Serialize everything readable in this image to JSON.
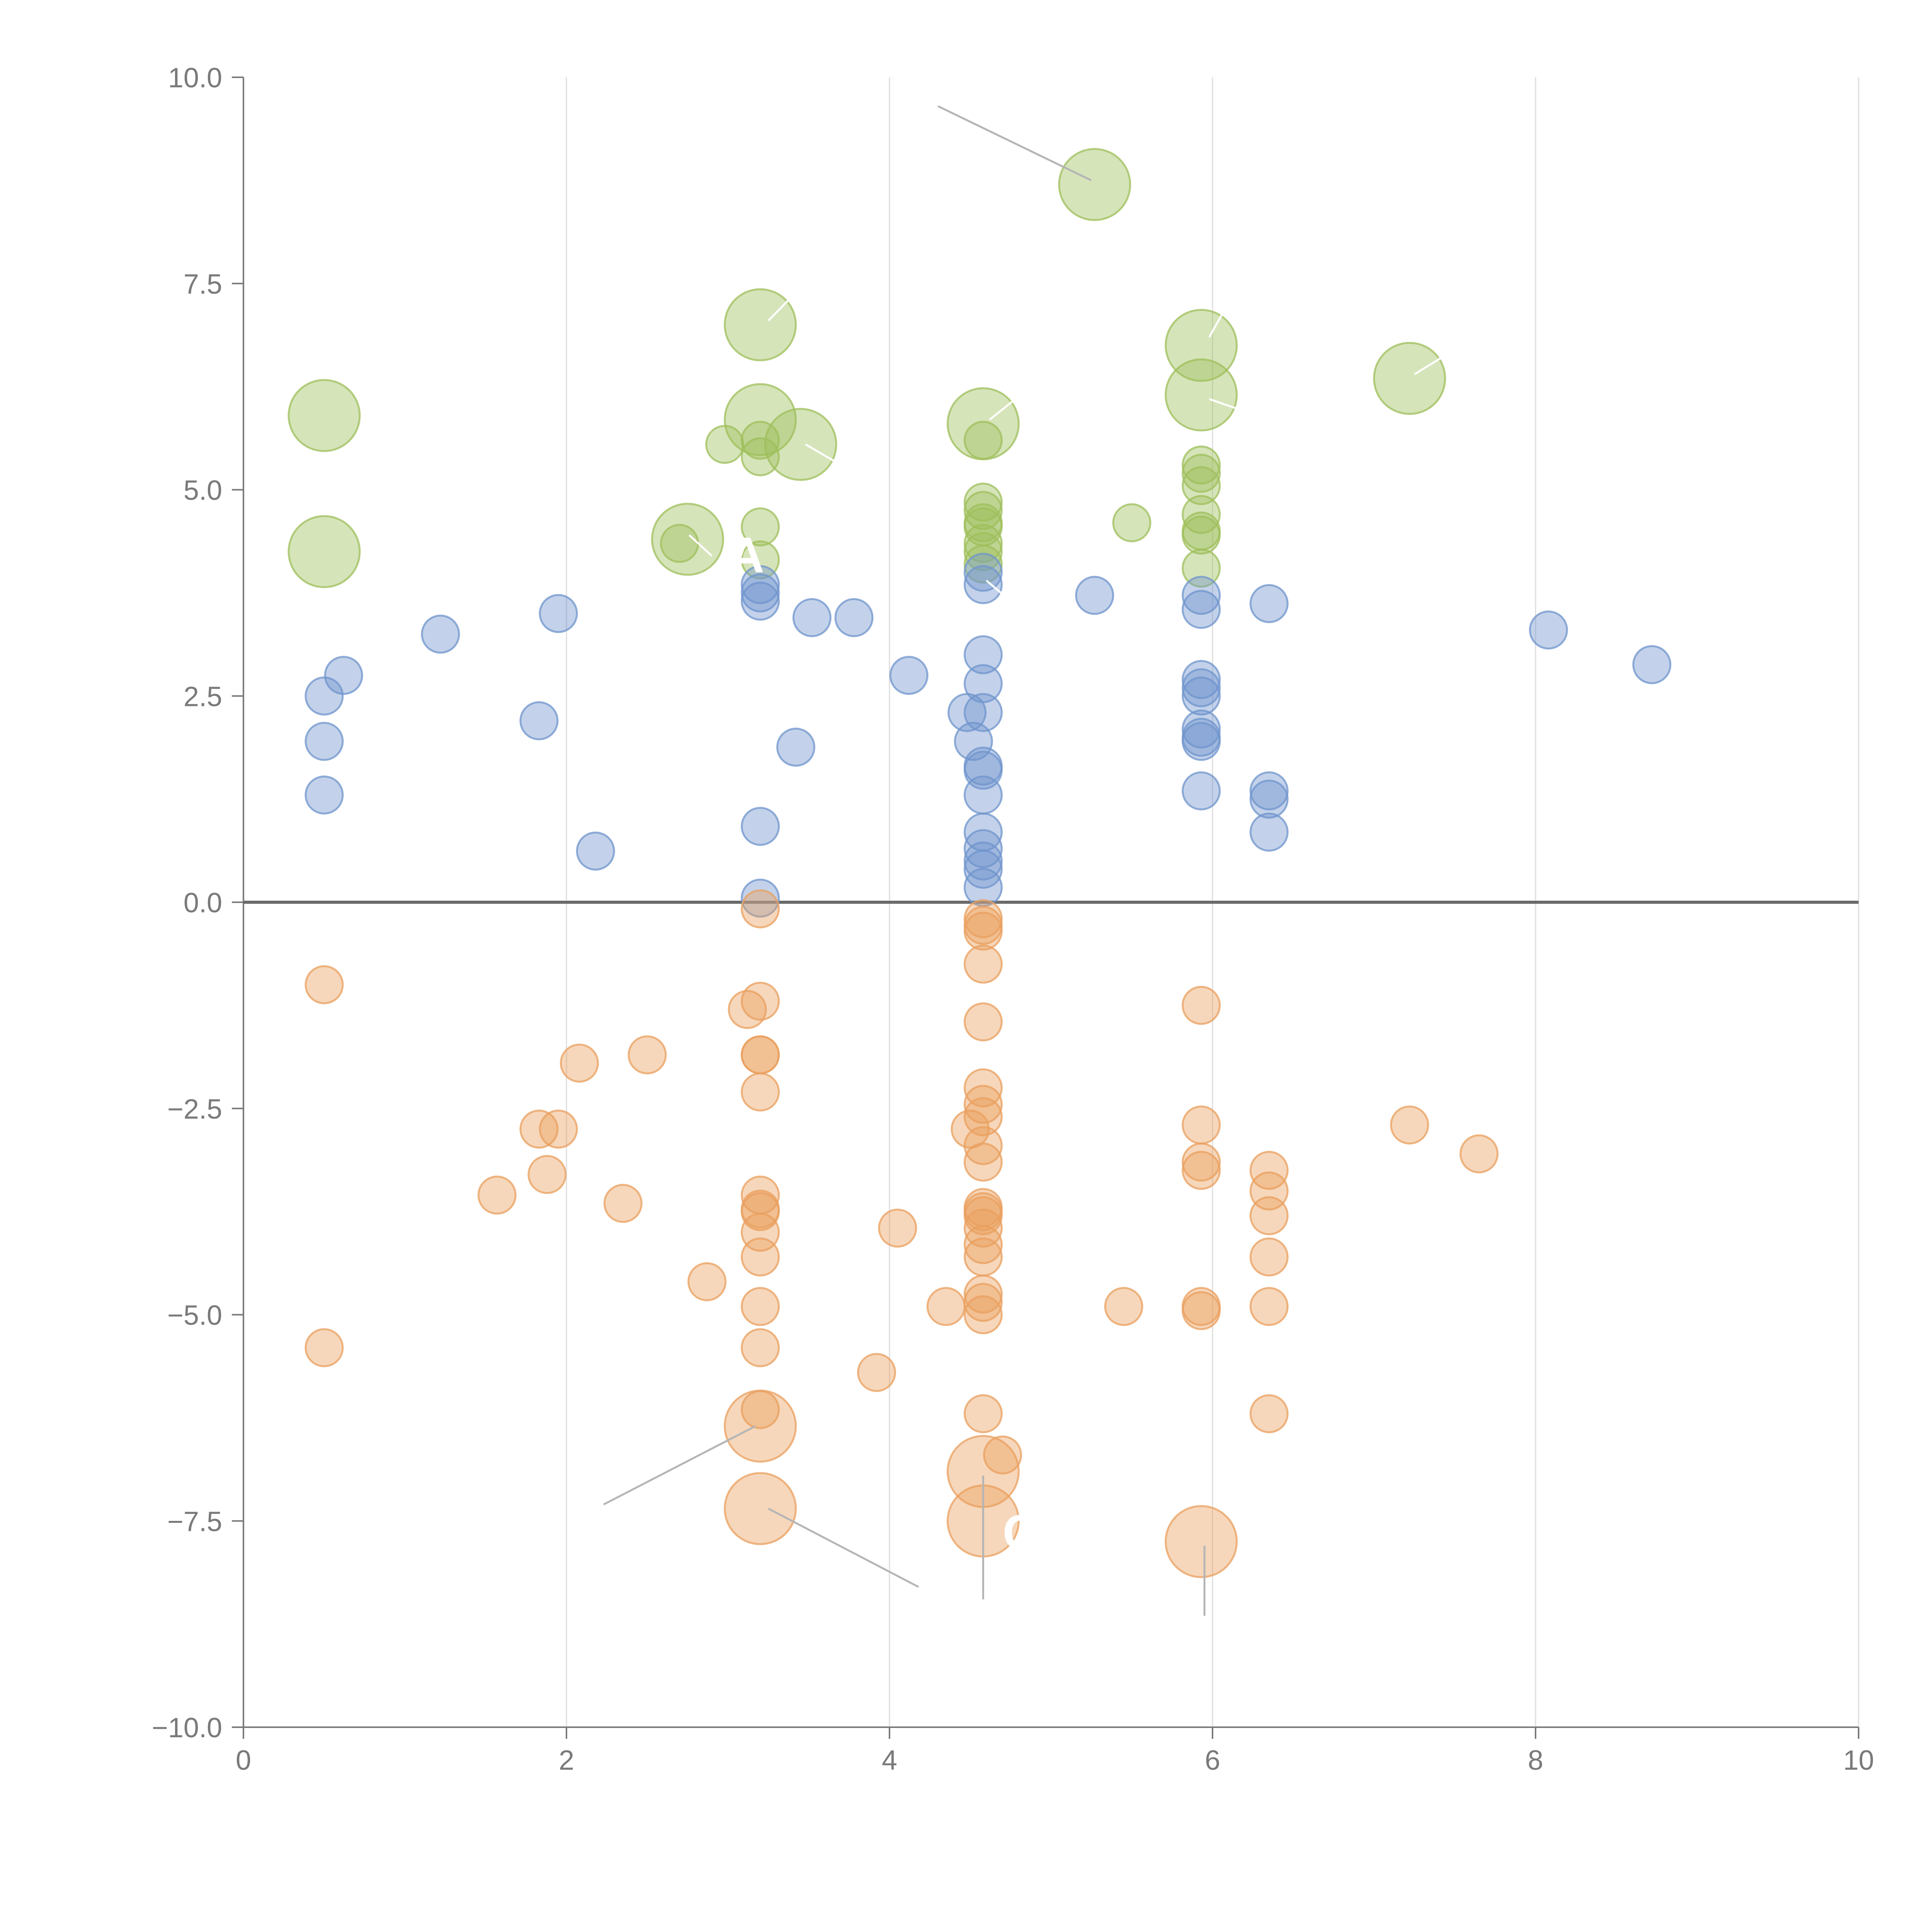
{
  "chart_data": {
    "type": "scatter",
    "title": "",
    "xlabel": "",
    "ylabel": "",
    "xlim": [
      0,
      10
    ],
    "ylim": [
      -10,
      10
    ],
    "grid": {
      "vertical": true,
      "horizontal": false
    },
    "x_ticks": [
      0,
      2,
      4,
      6,
      8,
      10
    ],
    "x_tick_labels": [
      "0",
      "2",
      "4",
      "6",
      "8",
      "10"
    ],
    "y_ticks": [
      10,
      7.5,
      5,
      2.5,
      0,
      -2.5,
      -5,
      -7.5,
      -10
    ],
    "y_tick_labels": [
      "10.0",
      "7.5",
      "5.0",
      "2.5",
      "0.0",
      "−2.5",
      "−5.0",
      "−7.5",
      "−10.0"
    ],
    "zero_line": 0,
    "colors": {
      "green": "#9dbf5a",
      "blue": "#6f94cc",
      "orange": "#e99f5e",
      "axis": "#7a7a7a",
      "grid": "#dddddd",
      "zero": "#6a6a6a",
      "connector": "#b5b5b5"
    },
    "series": [
      {
        "name": "green",
        "color": "#9dbf5a",
        "points": [
          {
            "x": 0.5,
            "y": 5.9,
            "size": "l"
          },
          {
            "x": 0.5,
            "y": 4.25,
            "size": "l"
          },
          {
            "x": 2.75,
            "y": 4.4,
            "size": "l"
          },
          {
            "x": 2.7,
            "y": 4.35,
            "size": "s"
          },
          {
            "x": 2.98,
            "y": 5.55,
            "size": "s"
          },
          {
            "x": 3.2,
            "y": 7.0,
            "size": "l"
          },
          {
            "x": 3.2,
            "y": 5.85,
            "size": "l"
          },
          {
            "x": 3.45,
            "y": 5.55,
            "size": "l"
          },
          {
            "x": 3.2,
            "y": 5.6,
            "size": "s"
          },
          {
            "x": 3.2,
            "y": 5.4,
            "size": "s"
          },
          {
            "x": 3.2,
            "y": 4.55,
            "size": "s"
          },
          {
            "x": 3.2,
            "y": 4.15,
            "size": "s"
          },
          {
            "x": 4.58,
            "y": 5.8,
            "size": "l"
          },
          {
            "x": 4.58,
            "y": 5.6,
            "size": "s"
          },
          {
            "x": 4.58,
            "y": 4.85,
            "size": "s"
          },
          {
            "x": 4.58,
            "y": 4.75,
            "size": "s"
          },
          {
            "x": 4.58,
            "y": 4.6,
            "size": "s"
          },
          {
            "x": 4.58,
            "y": 4.55,
            "size": "s"
          },
          {
            "x": 4.58,
            "y": 4.35,
            "size": "s"
          },
          {
            "x": 4.58,
            "y": 4.25,
            "size": "s"
          },
          {
            "x": 4.58,
            "y": 4.1,
            "size": "s"
          },
          {
            "x": 5.27,
            "y": 8.7,
            "size": "l"
          },
          {
            "x": 5.5,
            "y": 4.6,
            "size": "s"
          },
          {
            "x": 5.93,
            "y": 6.75,
            "size": "l"
          },
          {
            "x": 5.93,
            "y": 6.15,
            "size": "l"
          },
          {
            "x": 5.93,
            "y": 5.3,
            "size": "s"
          },
          {
            "x": 5.93,
            "y": 5.2,
            "size": "s"
          },
          {
            "x": 5.93,
            "y": 5.05,
            "size": "s"
          },
          {
            "x": 5.93,
            "y": 4.7,
            "size": "s"
          },
          {
            "x": 5.93,
            "y": 4.5,
            "size": "s"
          },
          {
            "x": 5.93,
            "y": 4.45,
            "size": "s"
          },
          {
            "x": 5.93,
            "y": 4.05,
            "size": "s"
          },
          {
            "x": 7.22,
            "y": 6.35,
            "size": "l"
          }
        ]
      },
      {
        "name": "blue",
        "color": "#6f94cc",
        "points": [
          {
            "x": 0.5,
            "y": 2.5,
            "size": "s"
          },
          {
            "x": 0.5,
            "y": 1.95,
            "size": "s"
          },
          {
            "x": 0.5,
            "y": 1.3,
            "size": "s"
          },
          {
            "x": 0.62,
            "y": 2.75,
            "size": "s"
          },
          {
            "x": 1.22,
            "y": 3.25,
            "size": "s"
          },
          {
            "x": 1.83,
            "y": 2.2,
            "size": "s"
          },
          {
            "x": 1.95,
            "y": 3.5,
            "size": "s"
          },
          {
            "x": 2.18,
            "y": 0.62,
            "size": "s"
          },
          {
            "x": 3.2,
            "y": 3.85,
            "size": "s"
          },
          {
            "x": 3.2,
            "y": 3.75,
            "size": "s"
          },
          {
            "x": 3.2,
            "y": 3.65,
            "size": "s"
          },
          {
            "x": 3.2,
            "y": 0.92,
            "size": "s"
          },
          {
            "x": 3.2,
            "y": 0.05,
            "size": "s"
          },
          {
            "x": 3.42,
            "y": 1.88,
            "size": "s"
          },
          {
            "x": 3.52,
            "y": 3.45,
            "size": "s"
          },
          {
            "x": 3.78,
            "y": 3.45,
            "size": "s"
          },
          {
            "x": 4.12,
            "y": 2.75,
            "size": "s"
          },
          {
            "x": 4.48,
            "y": 2.3,
            "size": "s"
          },
          {
            "x": 4.52,
            "y": 1.95,
            "size": "s"
          },
          {
            "x": 4.58,
            "y": 4.0,
            "size": "s"
          },
          {
            "x": 4.58,
            "y": 3.85,
            "size": "s"
          },
          {
            "x": 4.58,
            "y": 3.0,
            "size": "s"
          },
          {
            "x": 4.58,
            "y": 2.65,
            "size": "s"
          },
          {
            "x": 4.58,
            "y": 2.3,
            "size": "s"
          },
          {
            "x": 4.58,
            "y": 1.65,
            "size": "s"
          },
          {
            "x": 4.58,
            "y": 1.6,
            "size": "s"
          },
          {
            "x": 4.58,
            "y": 1.3,
            "size": "s"
          },
          {
            "x": 4.58,
            "y": 0.85,
            "size": "s"
          },
          {
            "x": 4.58,
            "y": 0.65,
            "size": "s"
          },
          {
            "x": 4.58,
            "y": 0.5,
            "size": "s"
          },
          {
            "x": 4.58,
            "y": 0.4,
            "size": "s"
          },
          {
            "x": 4.58,
            "y": 0.18,
            "size": "s"
          },
          {
            "x": 5.27,
            "y": 3.72,
            "size": "s"
          },
          {
            "x": 5.93,
            "y": 3.72,
            "size": "s"
          },
          {
            "x": 5.93,
            "y": 3.55,
            "size": "s"
          },
          {
            "x": 5.93,
            "y": 2.7,
            "size": "s"
          },
          {
            "x": 5.93,
            "y": 2.6,
            "size": "s"
          },
          {
            "x": 5.93,
            "y": 2.5,
            "size": "s"
          },
          {
            "x": 5.93,
            "y": 2.1,
            "size": "s"
          },
          {
            "x": 5.93,
            "y": 2.0,
            "size": "s"
          },
          {
            "x": 5.93,
            "y": 1.95,
            "size": "s"
          },
          {
            "x": 5.93,
            "y": 1.35,
            "size": "s"
          },
          {
            "x": 6.35,
            "y": 3.62,
            "size": "s"
          },
          {
            "x": 6.35,
            "y": 1.35,
            "size": "s"
          },
          {
            "x": 6.35,
            "y": 1.25,
            "size": "s"
          },
          {
            "x": 6.35,
            "y": 0.85,
            "size": "s"
          },
          {
            "x": 8.08,
            "y": 3.3,
            "size": "s"
          },
          {
            "x": 8.72,
            "y": 2.88,
            "size": "s"
          }
        ]
      },
      {
        "name": "orange",
        "color": "#e99f5e",
        "points": [
          {
            "x": 0.5,
            "y": -1.0,
            "size": "s"
          },
          {
            "x": 0.5,
            "y": -5.4,
            "size": "s"
          },
          {
            "x": 1.57,
            "y": -3.55,
            "size": "s"
          },
          {
            "x": 1.83,
            "y": -2.75,
            "size": "s"
          },
          {
            "x": 1.88,
            "y": -3.3,
            "size": "s"
          },
          {
            "x": 1.95,
            "y": -2.75,
            "size": "s"
          },
          {
            "x": 2.08,
            "y": -1.95,
            "size": "s"
          },
          {
            "x": 2.35,
            "y": -3.65,
            "size": "s"
          },
          {
            "x": 2.5,
            "y": -1.85,
            "size": "s"
          },
          {
            "x": 2.87,
            "y": -4.6,
            "size": "s"
          },
          {
            "x": 3.12,
            "y": -1.3,
            "size": "s"
          },
          {
            "x": 3.2,
            "y": -0.08,
            "size": "s"
          },
          {
            "x": 3.2,
            "y": -1.2,
            "size": "s"
          },
          {
            "x": 3.2,
            "y": -1.85,
            "size": "s"
          },
          {
            "x": 3.2,
            "y": -1.85,
            "size": "s"
          },
          {
            "x": 3.2,
            "y": -2.3,
            "size": "s"
          },
          {
            "x": 3.2,
            "y": -3.55,
            "size": "s"
          },
          {
            "x": 3.2,
            "y": -3.72,
            "size": "s"
          },
          {
            "x": 3.2,
            "y": -3.75,
            "size": "s"
          },
          {
            "x": 3.2,
            "y": -4.0,
            "size": "s"
          },
          {
            "x": 3.2,
            "y": -4.3,
            "size": "s"
          },
          {
            "x": 3.2,
            "y": -4.9,
            "size": "s"
          },
          {
            "x": 3.2,
            "y": -5.4,
            "size": "s"
          },
          {
            "x": 3.2,
            "y": -6.15,
            "size": "s"
          },
          {
            "x": 3.2,
            "y": -6.35,
            "size": "l"
          },
          {
            "x": 3.2,
            "y": -7.35,
            "size": "l"
          },
          {
            "x": 3.92,
            "y": -5.7,
            "size": "s"
          },
          {
            "x": 4.05,
            "y": -3.95,
            "size": "s"
          },
          {
            "x": 4.35,
            "y": -4.9,
            "size": "s"
          },
          {
            "x": 4.5,
            "y": -2.75,
            "size": "s"
          },
          {
            "x": 4.58,
            "y": -0.2,
            "size": "s"
          },
          {
            "x": 4.58,
            "y": -0.28,
            "size": "s"
          },
          {
            "x": 4.58,
            "y": -0.35,
            "size": "s"
          },
          {
            "x": 4.58,
            "y": -0.75,
            "size": "s"
          },
          {
            "x": 4.58,
            "y": -1.45,
            "size": "s"
          },
          {
            "x": 4.58,
            "y": -2.25,
            "size": "s"
          },
          {
            "x": 4.58,
            "y": -2.45,
            "size": "s"
          },
          {
            "x": 4.58,
            "y": -2.6,
            "size": "s"
          },
          {
            "x": 4.58,
            "y": -2.95,
            "size": "s"
          },
          {
            "x": 4.58,
            "y": -3.15,
            "size": "s"
          },
          {
            "x": 4.58,
            "y": -3.7,
            "size": "s"
          },
          {
            "x": 4.58,
            "y": -3.75,
            "size": "s"
          },
          {
            "x": 4.58,
            "y": -3.8,
            "size": "s"
          },
          {
            "x": 4.58,
            "y": -3.95,
            "size": "s"
          },
          {
            "x": 4.58,
            "y": -4.15,
            "size": "s"
          },
          {
            "x": 4.58,
            "y": -4.3,
            "size": "s"
          },
          {
            "x": 4.58,
            "y": -4.75,
            "size": "s"
          },
          {
            "x": 4.58,
            "y": -4.85,
            "size": "s"
          },
          {
            "x": 4.58,
            "y": -5.0,
            "size": "s"
          },
          {
            "x": 4.58,
            "y": -6.2,
            "size": "s"
          },
          {
            "x": 4.58,
            "y": -6.9,
            "size": "l"
          },
          {
            "x": 4.58,
            "y": -7.5,
            "size": "l"
          },
          {
            "x": 4.7,
            "y": -6.7,
            "size": "s"
          },
          {
            "x": 5.45,
            "y": -4.9,
            "size": "s"
          },
          {
            "x": 5.93,
            "y": -1.25,
            "size": "s"
          },
          {
            "x": 5.93,
            "y": -2.7,
            "size": "s"
          },
          {
            "x": 5.93,
            "y": -3.15,
            "size": "s"
          },
          {
            "x": 5.93,
            "y": -3.25,
            "size": "s"
          },
          {
            "x": 5.93,
            "y": -4.9,
            "size": "s"
          },
          {
            "x": 5.93,
            "y": -4.95,
            "size": "s"
          },
          {
            "x": 5.93,
            "y": -7.75,
            "size": "l"
          },
          {
            "x": 6.35,
            "y": -3.25,
            "size": "s"
          },
          {
            "x": 6.35,
            "y": -3.5,
            "size": "s"
          },
          {
            "x": 6.35,
            "y": -3.8,
            "size": "s"
          },
          {
            "x": 6.35,
            "y": -4.3,
            "size": "s"
          },
          {
            "x": 6.35,
            "y": -4.9,
            "size": "s"
          },
          {
            "x": 6.35,
            "y": -6.2,
            "size": "s"
          },
          {
            "x": 7.22,
            "y": -2.7,
            "size": "s"
          },
          {
            "x": 7.65,
            "y": -3.05,
            "size": "s"
          }
        ]
      }
    ],
    "annotation_connectors": [
      {
        "color": "#b5b5b5",
        "from": [
          4.3,
          9.65
        ],
        "to": [
          5.25,
          8.75
        ]
      },
      {
        "color": "#ffffff",
        "from": [
          3.25,
          7.05
        ],
        "to": [
          3.4,
          7.35
        ]
      },
      {
        "color": "#ffffff",
        "from": [
          5.98,
          6.85
        ],
        "to": [
          6.08,
          7.2
        ]
      },
      {
        "color": "#ffffff",
        "from": [
          5.98,
          6.1
        ],
        "to": [
          6.2,
          5.95
        ]
      },
      {
        "color": "#ffffff",
        "from": [
          7.25,
          6.4
        ],
        "to": [
          7.5,
          6.7
        ]
      },
      {
        "color": "#ffffff",
        "from": [
          4.62,
          5.85
        ],
        "to": [
          4.78,
          6.1
        ]
      },
      {
        "color": "#ffffff",
        "from": [
          3.48,
          5.55
        ],
        "to": [
          3.7,
          5.3
        ]
      },
      {
        "color": "#ffffff",
        "from": [
          2.76,
          4.45
        ],
        "to": [
          2.9,
          4.2
        ]
      },
      {
        "color": "#ffffff",
        "from": [
          4.6,
          3.9
        ],
        "to": [
          4.75,
          3.65
        ]
      },
      {
        "color": "#b5b5b5",
        "from": [
          3.17,
          -6.35
        ],
        "to": [
          2.23,
          -7.3
        ]
      },
      {
        "color": "#b5b5b5",
        "from": [
          3.25,
          -7.35
        ],
        "to": [
          4.18,
          -8.3
        ]
      },
      {
        "color": "#b5b5b5",
        "from": [
          4.58,
          -6.95
        ],
        "to": [
          4.58,
          -8.45
        ]
      },
      {
        "color": "#b5b5b5",
        "from": [
          5.95,
          -7.8
        ],
        "to": [
          5.95,
          -8.65
        ]
      }
    ],
    "annotations": [
      {
        "text": "A",
        "x": 3.0,
        "y": 4.0,
        "color": "#ffffff"
      },
      {
        "text": "C",
        "x": 4.7,
        "y": -7.85,
        "color": "#ffffff"
      }
    ]
  }
}
